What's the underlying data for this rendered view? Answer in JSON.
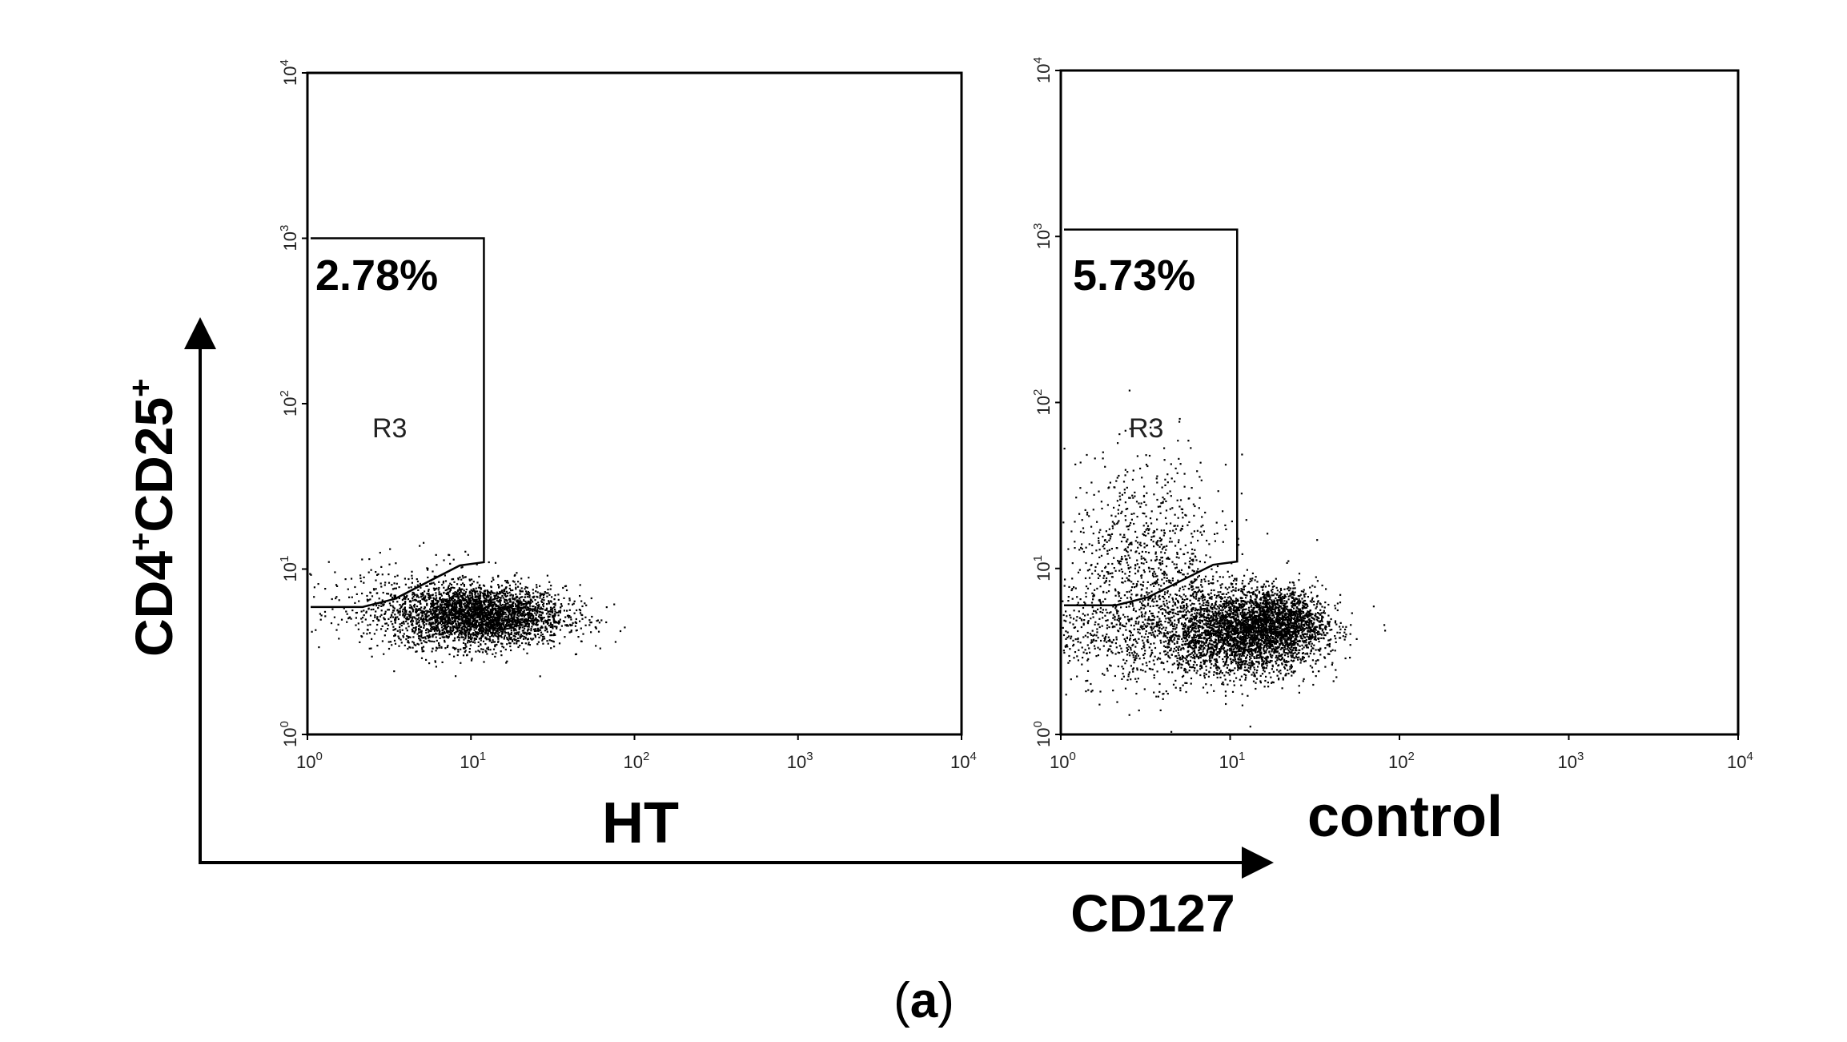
{
  "chart_data": [
    {
      "type": "scatter",
      "panel": "HT",
      "xlabel": "HT",
      "scale": "log",
      "xlim": [
        1,
        10000
      ],
      "ylim": [
        1,
        10000
      ],
      "x_ticks": [
        {
          "base": "10",
          "exp": "0"
        },
        {
          "base": "10",
          "exp": "1"
        },
        {
          "base": "10",
          "exp": "2"
        },
        {
          "base": "10",
          "exp": "3"
        },
        {
          "base": "10",
          "exp": "4"
        }
      ],
      "y_ticks": [
        {
          "base": "10",
          "exp": "0"
        },
        {
          "base": "10",
          "exp": "1"
        },
        {
          "base": "10",
          "exp": "2"
        },
        {
          "base": "10",
          "exp": "3"
        },
        {
          "base": "10",
          "exp": "4"
        }
      ],
      "gate": {
        "name": "R3",
        "percent": "2.78%",
        "x_max": 12,
        "y_max": 1000,
        "y_min_left": 5.9,
        "y_min_right": 11
      },
      "clusters": [
        {
          "cx_log": 1.05,
          "cy_log": 0.72,
          "sx": 0.26,
          "sy": 0.09,
          "n": 3200
        },
        {
          "cx_log": 0.65,
          "cy_log": 0.78,
          "sx": 0.3,
          "sy": 0.14,
          "n": 400
        }
      ]
    },
    {
      "type": "scatter",
      "panel": "control",
      "xlabel": "control",
      "scale": "log",
      "xlim": [
        1,
        10000
      ],
      "ylim": [
        1,
        10000
      ],
      "x_ticks": [
        {
          "base": "10",
          "exp": "0"
        },
        {
          "base": "10",
          "exp": "1"
        },
        {
          "base": "10",
          "exp": "2"
        },
        {
          "base": "10",
          "exp": "3"
        },
        {
          "base": "10",
          "exp": "4"
        }
      ],
      "y_ticks": [
        {
          "base": "10",
          "exp": "0"
        },
        {
          "base": "10",
          "exp": "1"
        },
        {
          "base": "10",
          "exp": "2"
        },
        {
          "base": "10",
          "exp": "3"
        },
        {
          "base": "10",
          "exp": "4"
        }
      ],
      "gate": {
        "name": "R3",
        "percent": "5.73%",
        "x_max": 11,
        "y_max": 1100,
        "y_min_left": 6.0,
        "y_min_right": 11
      },
      "clusters": [
        {
          "cx_log": 1.05,
          "cy_log": 0.62,
          "sx": 0.24,
          "sy": 0.13,
          "n": 3000
        },
        {
          "cx_log": 1.28,
          "cy_log": 0.68,
          "sx": 0.14,
          "sy": 0.1,
          "n": 1200
        },
        {
          "cx_log": 0.5,
          "cy_log": 1.02,
          "sx": 0.24,
          "sy": 0.32,
          "n": 900
        },
        {
          "cx_log": 0.4,
          "cy_log": 0.62,
          "sx": 0.28,
          "sy": 0.16,
          "n": 500
        }
      ]
    }
  ],
  "axes": {
    "y_title": {
      "main": "CD4",
      "sup1": "+",
      "mid": "CD25",
      "sup2": "+"
    },
    "x_title": "CD127"
  },
  "panel_label": {
    "open": "(",
    "letter": "a",
    "close": ")"
  }
}
